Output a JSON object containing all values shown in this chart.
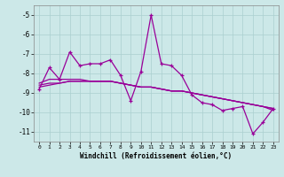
{
  "xlabel": "Windchill (Refroidissement éolien,°C)",
  "hours": [
    0,
    1,
    2,
    3,
    4,
    5,
    6,
    7,
    8,
    9,
    10,
    11,
    12,
    13,
    14,
    15,
    16,
    17,
    18,
    19,
    20,
    21,
    22,
    23
  ],
  "main_line": [
    -8.8,
    -7.7,
    -8.3,
    -6.9,
    -7.6,
    -7.5,
    -7.5,
    -7.3,
    -8.1,
    -9.4,
    -7.9,
    -5.0,
    -7.5,
    -7.6,
    -8.1,
    -9.1,
    -9.5,
    -9.6,
    -9.9,
    -9.8,
    -9.7,
    -11.1,
    -10.5,
    -9.8
  ],
  "trend1": [
    -8.5,
    -8.3,
    -8.3,
    -8.3,
    -8.3,
    -8.4,
    -8.4,
    -8.4,
    -8.5,
    -8.6,
    -8.7,
    -8.7,
    -8.8,
    -8.9,
    -8.9,
    -9.0,
    -9.1,
    -9.2,
    -9.3,
    -9.4,
    -9.5,
    -9.6,
    -9.7,
    -9.8
  ],
  "trend2": [
    -8.6,
    -8.5,
    -8.5,
    -8.4,
    -8.4,
    -8.4,
    -8.4,
    -8.4,
    -8.5,
    -8.6,
    -8.7,
    -8.7,
    -8.8,
    -8.9,
    -8.9,
    -9.0,
    -9.1,
    -9.2,
    -9.3,
    -9.4,
    -9.5,
    -9.6,
    -9.7,
    -9.8
  ],
  "trend3": [
    -8.7,
    -8.6,
    -8.5,
    -8.4,
    -8.4,
    -8.4,
    -8.4,
    -8.4,
    -8.5,
    -8.6,
    -8.7,
    -8.7,
    -8.8,
    -8.9,
    -8.9,
    -9.0,
    -9.1,
    -9.2,
    -9.3,
    -9.4,
    -9.5,
    -9.6,
    -9.7,
    -9.9
  ],
  "line_color": "#990099",
  "bg_color": "#cce8e8",
  "grid_color": "#aacfcf",
  "ylim": [
    -11.5,
    -4.5
  ],
  "yticks": [
    -11,
    -10,
    -9,
    -8,
    -7,
    -6,
    -5
  ],
  "xticks": [
    0,
    1,
    2,
    3,
    4,
    5,
    6,
    7,
    8,
    9,
    10,
    11,
    12,
    13,
    14,
    15,
    16,
    17,
    18,
    19,
    20,
    21,
    22,
    23
  ]
}
